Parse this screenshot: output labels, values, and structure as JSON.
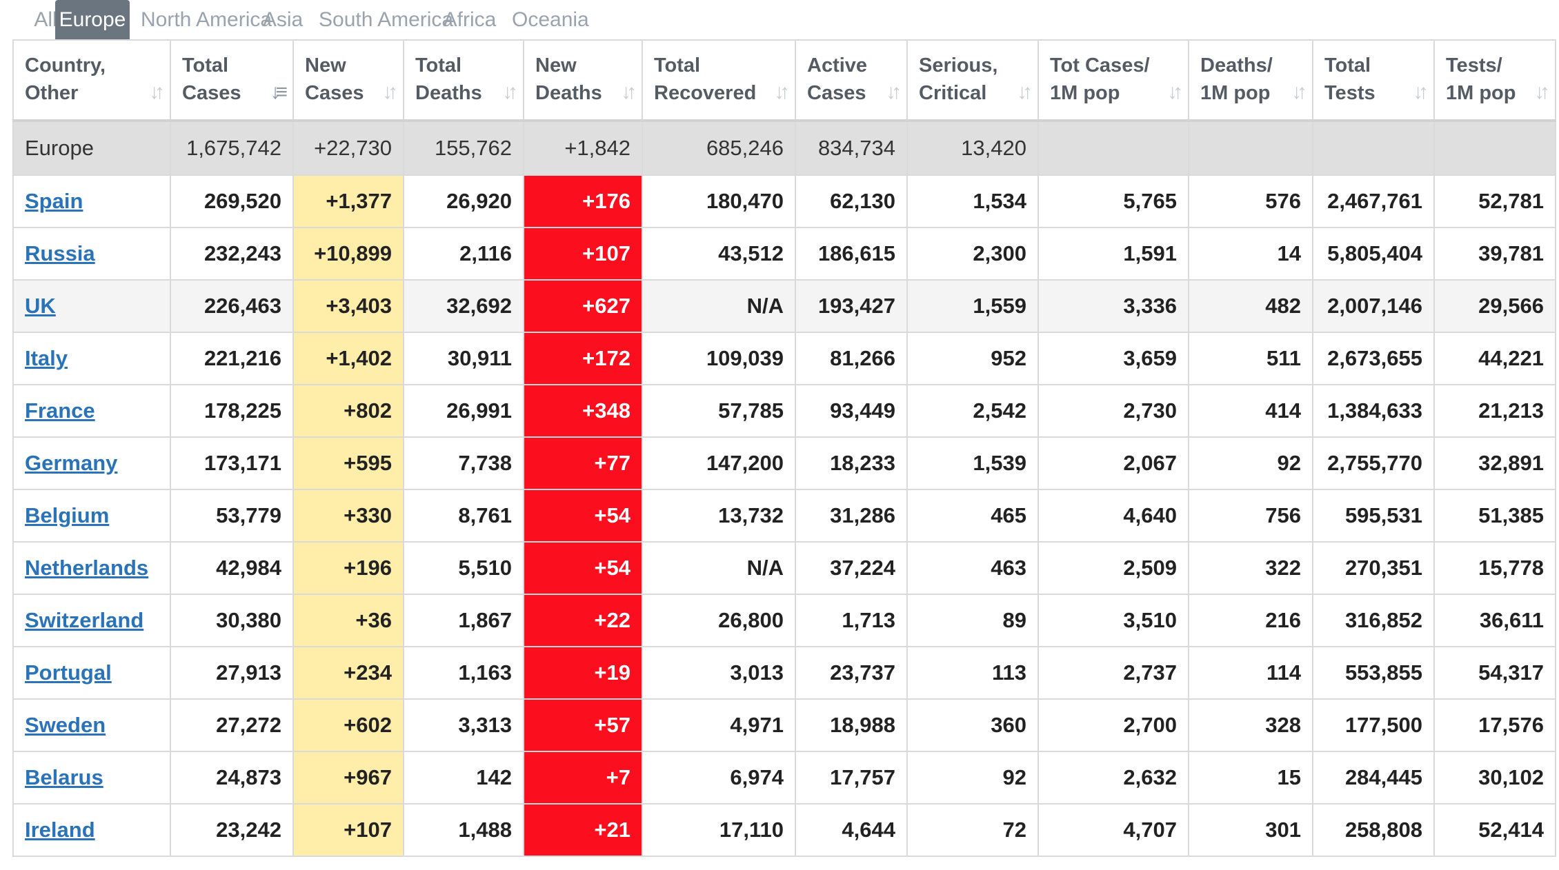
{
  "tabs": [
    {
      "label": "All"
    },
    {
      "label": "Europe",
      "active": true
    },
    {
      "label": "North America"
    },
    {
      "label": "Asia"
    },
    {
      "label": "South America"
    },
    {
      "label": "Africa"
    },
    {
      "label": "Oceania"
    }
  ],
  "colors": {
    "active_tab": "#6b7580",
    "new_cases_highlight": "#ffeeaa",
    "new_deaths_highlight": "#fb0f1f",
    "link": "#2a73b8",
    "total_row": "#dfdfdf"
  },
  "columns": [
    {
      "line1": "Country,",
      "line2": "Other"
    },
    {
      "line1": "Total",
      "line2": "Cases",
      "sorted": true
    },
    {
      "line1": "New",
      "line2": "Cases"
    },
    {
      "line1": "Total",
      "line2": "Deaths"
    },
    {
      "line1": "New",
      "line2": "Deaths"
    },
    {
      "line1": "Total",
      "line2": "Recovered"
    },
    {
      "line1": "Active",
      "line2": "Cases"
    },
    {
      "line1": "Serious,",
      "line2": "Critical"
    },
    {
      "line1": "Tot Cases/",
      "line2": "1M pop"
    },
    {
      "line1": "Deaths/",
      "line2": "1M pop"
    },
    {
      "line1": "Total",
      "line2": "Tests"
    },
    {
      "line1": "Tests/",
      "line2": "1M pop"
    }
  ],
  "total_row": [
    "Europe",
    "1,675,742",
    "+22,730",
    "155,762",
    "+1,842",
    "685,246",
    "834,734",
    "13,420",
    "",
    "",
    "",
    ""
  ],
  "rows": [
    [
      "Spain",
      "269,520",
      "+1,377",
      "26,920",
      "+176",
      "180,470",
      "62,130",
      "1,534",
      "5,765",
      "576",
      "2,467,761",
      "52,781"
    ],
    [
      "Russia",
      "232,243",
      "+10,899",
      "2,116",
      "+107",
      "43,512",
      "186,615",
      "2,300",
      "1,591",
      "14",
      "5,805,404",
      "39,781"
    ],
    [
      "UK",
      "226,463",
      "+3,403",
      "32,692",
      "+627",
      "N/A",
      "193,427",
      "1,559",
      "3,336",
      "482",
      "2,007,146",
      "29,566"
    ],
    [
      "Italy",
      "221,216",
      "+1,402",
      "30,911",
      "+172",
      "109,039",
      "81,266",
      "952",
      "3,659",
      "511",
      "2,673,655",
      "44,221"
    ],
    [
      "France",
      "178,225",
      "+802",
      "26,991",
      "+348",
      "57,785",
      "93,449",
      "2,542",
      "2,730",
      "414",
      "1,384,633",
      "21,213"
    ],
    [
      "Germany",
      "173,171",
      "+595",
      "7,738",
      "+77",
      "147,200",
      "18,233",
      "1,539",
      "2,067",
      "92",
      "2,755,770",
      "32,891"
    ],
    [
      "Belgium",
      "53,779",
      "+330",
      "8,761",
      "+54",
      "13,732",
      "31,286",
      "465",
      "4,640",
      "756",
      "595,531",
      "51,385"
    ],
    [
      "Netherlands",
      "42,984",
      "+196",
      "5,510",
      "+54",
      "N/A",
      "37,224",
      "463",
      "2,509",
      "322",
      "270,351",
      "15,778"
    ],
    [
      "Switzerland",
      "30,380",
      "+36",
      "1,867",
      "+22",
      "26,800",
      "1,713",
      "89",
      "3,510",
      "216",
      "316,852",
      "36,611"
    ],
    [
      "Portugal",
      "27,913",
      "+234",
      "1,163",
      "+19",
      "3,013",
      "23,737",
      "113",
      "2,737",
      "114",
      "553,855",
      "54,317"
    ],
    [
      "Sweden",
      "27,272",
      "+602",
      "3,313",
      "+57",
      "4,971",
      "18,988",
      "360",
      "2,700",
      "328",
      "177,500",
      "17,576"
    ],
    [
      "Belarus",
      "24,873",
      "+967",
      "142",
      "+7",
      "6,974",
      "17,757",
      "92",
      "2,632",
      "15",
      "284,445",
      "30,102"
    ],
    [
      "Ireland",
      "23,242",
      "+107",
      "1,488",
      "+21",
      "17,110",
      "4,644",
      "72",
      "4,707",
      "301",
      "258,808",
      "52,414"
    ]
  ],
  "icons": {
    "sort": "sort-arrows-icon",
    "sort_active": "sort-desc-icon"
  }
}
